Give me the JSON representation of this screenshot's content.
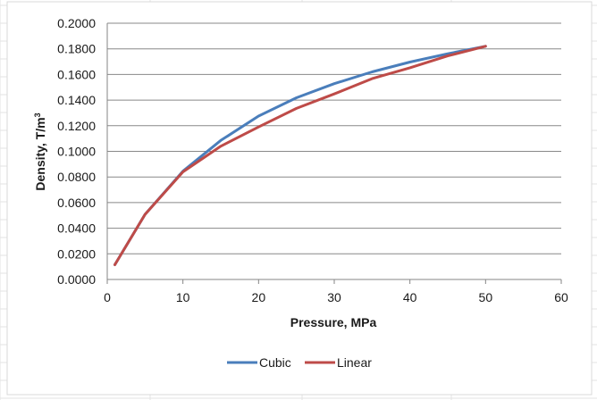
{
  "chart_data": {
    "type": "line",
    "title": "",
    "xlabel": "Pressure, MPa",
    "ylabel_main": "Density, T/m",
    "ylabel_sup": "3",
    "xlim": [
      0,
      60
    ],
    "ylim": [
      0,
      0.2
    ],
    "x_ticks": [
      "0",
      "10",
      "20",
      "30",
      "40",
      "50",
      "60"
    ],
    "y_ticks": [
      "0.0000",
      "0.0200",
      "0.0400",
      "0.0600",
      "0.0800",
      "0.1000",
      "0.1200",
      "0.1400",
      "0.1600",
      "0.1800",
      "0.2000"
    ],
    "grid": true,
    "legend_position": "bottom",
    "series": [
      {
        "name": "Cubic",
        "color": "#4a7ebb",
        "x": [
          1,
          5,
          10,
          15,
          20,
          25,
          30,
          35,
          40,
          45,
          50
        ],
        "y": [
          0.0115,
          0.0508,
          0.0845,
          0.1085,
          0.1275,
          0.1418,
          0.1528,
          0.162,
          0.1697,
          0.1762,
          0.182
        ]
      },
      {
        "name": "Linear",
        "color": "#be4b48",
        "x": [
          1,
          5,
          10,
          15,
          20,
          25,
          30,
          35,
          40,
          45,
          50
        ],
        "y": [
          0.0115,
          0.0508,
          0.084,
          0.104,
          0.119,
          0.1335,
          0.1448,
          0.1567,
          0.1652,
          0.1745,
          0.182
        ]
      }
    ]
  }
}
